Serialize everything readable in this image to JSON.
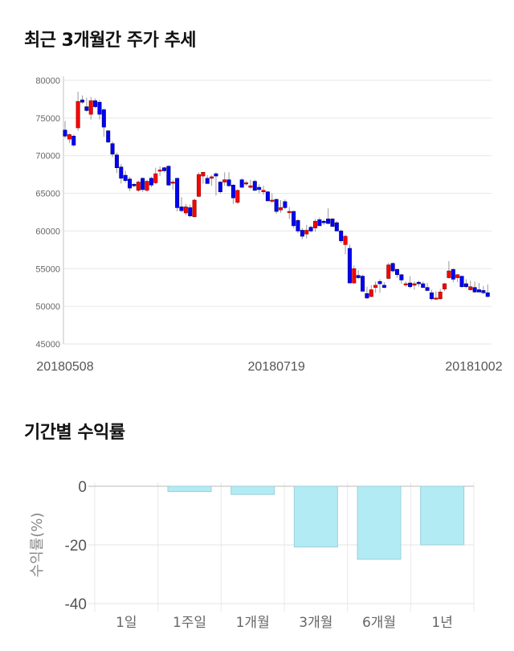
{
  "chart_data": [
    {
      "type": "candlestick",
      "title": "최근 3개월간 주가 추세",
      "ylim": [
        45000,
        80000
      ],
      "yticks": [
        45000,
        50000,
        55000,
        60000,
        65000,
        70000,
        75000,
        80000
      ],
      "xticks": [
        {
          "label": "20180508",
          "index": 0
        },
        {
          "label": "20180719",
          "index": 49
        },
        {
          "label": "20181002",
          "index": 95
        }
      ],
      "grid": true,
      "colors": {
        "up": "#ff0000",
        "down": "#0000ff",
        "wick": "#999999"
      },
      "ohlc": [
        [
          73400,
          74600,
          72300,
          72600
        ],
        [
          72200,
          73000,
          71700,
          72800
        ],
        [
          72600,
          72800,
          71200,
          71400
        ],
        [
          73700,
          78500,
          73300,
          77200
        ],
        [
          77400,
          78000,
          76900,
          77100
        ],
        [
          76500,
          77700,
          75800,
          76000
        ],
        [
          75500,
          77800,
          74800,
          77300
        ],
        [
          77300,
          77600,
          76300,
          76500
        ],
        [
          77100,
          77400,
          74800,
          75500
        ],
        [
          76100,
          76300,
          72500,
          73800
        ],
        [
          73300,
          73400,
          71700,
          71800
        ],
        [
          71600,
          71900,
          69800,
          70200
        ],
        [
          70100,
          70400,
          67700,
          68400
        ],
        [
          68500,
          68900,
          66300,
          67000
        ],
        [
          67400,
          68000,
          66400,
          66700
        ],
        [
          66900,
          67200,
          65300,
          65700
        ],
        [
          66200,
          66400,
          65800,
          66000
        ],
        [
          65400,
          66700,
          65200,
          66500
        ],
        [
          67000,
          67100,
          65200,
          65500
        ],
        [
          65400,
          66800,
          65200,
          66600
        ],
        [
          67000,
          67200,
          65800,
          66100
        ],
        [
          66400,
          68400,
          66200,
          67600
        ],
        [
          68000,
          68600,
          67300,
          68100
        ],
        [
          68400,
          68500,
          67800,
          68000
        ],
        [
          68600,
          68700,
          66000,
          66100
        ],
        [
          66500,
          66800,
          65500,
          66500
        ],
        [
          67000,
          67000,
          62600,
          63100
        ],
        [
          63200,
          64500,
          62500,
          62700
        ],
        [
          62400,
          63600,
          62100,
          63200
        ],
        [
          63100,
          63500,
          61800,
          62000
        ],
        [
          61900,
          64300,
          61800,
          64100
        ],
        [
          64600,
          67800,
          64500,
          67500
        ],
        [
          67300,
          67800,
          66300,
          67800
        ],
        [
          67000,
          67400,
          66300,
          66300
        ],
        [
          67000,
          67400,
          66000,
          67200
        ],
        [
          67600,
          67800,
          64700,
          67300
        ],
        [
          66500,
          66600,
          65000,
          65200
        ],
        [
          66500,
          67800,
          66000,
          66800
        ],
        [
          66800,
          67800,
          65900,
          66000
        ],
        [
          66100,
          66200,
          63600,
          64400
        ],
        [
          63800,
          65500,
          63600,
          65400
        ],
        [
          66800,
          67000,
          65800,
          65800
        ],
        [
          66400,
          66700,
          66000,
          66400
        ],
        [
          65800,
          66800,
          65600,
          66000
        ],
        [
          66600,
          66800,
          65300,
          65400
        ],
        [
          65800,
          66200,
          65000,
          65500
        ],
        [
          65200,
          66000,
          64800,
          65400
        ],
        [
          65200,
          65300,
          64000,
          64000
        ],
        [
          64000,
          65000,
          63700,
          64100
        ],
        [
          64200,
          64300,
          62300,
          62600
        ],
        [
          62800,
          64100,
          62400,
          63100
        ],
        [
          63900,
          64200,
          62900,
          63100
        ],
        [
          62600,
          63200,
          61600,
          62600
        ],
        [
          62600,
          62700,
          60400,
          60700
        ],
        [
          61400,
          61600,
          59700,
          60000
        ],
        [
          60100,
          60400,
          58900,
          59300
        ],
        [
          59600,
          60800,
          59000,
          60100
        ],
        [
          60500,
          60700,
          59800,
          60000
        ],
        [
          60400,
          61600,
          59900,
          61300
        ],
        [
          61500,
          61800,
          60700,
          60700
        ],
        [
          61300,
          61500,
          60800,
          61100
        ],
        [
          61600,
          63000,
          60900,
          61000
        ],
        [
          61600,
          61700,
          60600,
          60600
        ],
        [
          61100,
          61300,
          60000,
          60000
        ],
        [
          60000,
          60200,
          58400,
          58700
        ],
        [
          58200,
          59500,
          56900,
          59300
        ],
        [
          57700,
          58200,
          53100,
          53100
        ],
        [
          53100,
          55400,
          53000,
          55000
        ],
        [
          54100,
          54800,
          53600,
          53800
        ],
        [
          54000,
          54200,
          52000,
          52000
        ],
        [
          51700,
          52600,
          51000,
          51100
        ],
        [
          51300,
          52800,
          51200,
          52200
        ],
        [
          52500,
          53300,
          51800,
          52800
        ],
        [
          53300,
          53600,
          51800,
          53000
        ],
        [
          52800,
          53200,
          52400,
          52500
        ],
        [
          53700,
          55800,
          53600,
          55500
        ],
        [
          55700,
          55800,
          54500,
          54700
        ],
        [
          54900,
          55000,
          53800,
          54200
        ],
        [
          54200,
          54300,
          53000,
          53500
        ],
        [
          53000,
          53300,
          52600,
          53000
        ],
        [
          53100,
          54000,
          52400,
          52600
        ],
        [
          52800,
          53300,
          52200,
          53000
        ],
        [
          53200,
          53400,
          52600,
          53000
        ],
        [
          53000,
          53300,
          52500,
          52500
        ],
        [
          52500,
          53100,
          52000,
          52100
        ],
        [
          51800,
          52200,
          50800,
          51000
        ],
        [
          51100,
          52000,
          50900,
          51100
        ],
        [
          51000,
          52300,
          50900,
          51900
        ],
        [
          52300,
          53100,
          52000,
          53000
        ],
        [
          53800,
          56000,
          53700,
          54700
        ],
        [
          54900,
          55000,
          53200,
          53600
        ],
        [
          53800,
          54300,
          53200,
          54200
        ],
        [
          54000,
          54000,
          52500,
          52600
        ],
        [
          53000,
          53600,
          52400,
          52600
        ],
        [
          52200,
          53400,
          52100,
          52600
        ],
        [
          52500,
          53300,
          51800,
          51900
        ],
        [
          52200,
          53100,
          51900,
          51900
        ],
        [
          52100,
          52700,
          51600,
          51800
        ],
        [
          51800,
          52900,
          51200,
          51300
        ]
      ]
    },
    {
      "type": "bar",
      "title": "기간별 수익률",
      "ylabel": "수익률(%)",
      "ylim": [
        -40,
        0
      ],
      "yticks": [
        0,
        -20,
        -40
      ],
      "categories": [
        "1일",
        "1주일",
        "1개월",
        "3개월",
        "6개월",
        "1년"
      ],
      "values": [
        0,
        -1.8,
        -2.8,
        -20.7,
        -24.9,
        -20.0
      ],
      "grid": true,
      "colors": {
        "bar": "#b3ebf4",
        "bar_border": "#9ccfd9"
      }
    }
  ]
}
